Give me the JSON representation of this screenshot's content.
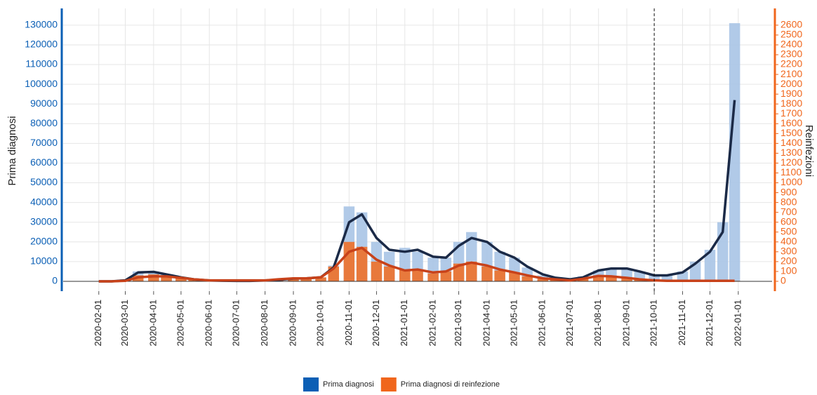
{
  "chart_data": {
    "type": "bar",
    "y_label": "Prima diagnosi",
    "y2_label": "Reinfezioni",
    "x": [
      "2020-02-01",
      "2020-02-15",
      "2020-03-01",
      "2020-03-15",
      "2020-04-01",
      "2020-04-15",
      "2020-05-01",
      "2020-05-15",
      "2020-06-01",
      "2020-06-15",
      "2020-07-01",
      "2020-07-15",
      "2020-08-01",
      "2020-08-15",
      "2020-09-01",
      "2020-09-15",
      "2020-10-01",
      "2020-10-15",
      "2020-11-01",
      "2020-11-15",
      "2020-12-01",
      "2020-12-15",
      "2021-01-01",
      "2021-01-15",
      "2021-02-01",
      "2021-02-15",
      "2021-03-01",
      "2021-03-15",
      "2021-04-01",
      "2021-04-15",
      "2021-05-01",
      "2021-05-15",
      "2021-06-01",
      "2021-06-15",
      "2021-07-01",
      "2021-07-15",
      "2021-08-01",
      "2021-08-15",
      "2021-09-01",
      "2021-09-15",
      "2021-10-01",
      "2021-10-15",
      "2021-11-01",
      "2021-11-15",
      "2021-12-01",
      "2021-12-15",
      "2021-12-28"
    ],
    "series": [
      {
        "name": "Prima diagnosi",
        "color": "#0b5fb5",
        "bar_color": "#a9c4e6",
        "trend_color": "#1b2a47",
        "axis": "y",
        "values": [
          0,
          0,
          1000,
          5000,
          5000,
          3500,
          2000,
          1000,
          400,
          300,
          200,
          200,
          400,
          800,
          1500,
          1500,
          2000,
          8000,
          38000,
          35000,
          20000,
          15000,
          17000,
          15000,
          12000,
          12000,
          20000,
          25000,
          20000,
          15000,
          12000,
          7000,
          3000,
          1500,
          1000,
          2500,
          5500,
          6500,
          6500,
          5000,
          3000,
          3000,
          5000,
          10000,
          16000,
          30000,
          131000
        ],
        "trend": [
          0,
          0,
          500,
          4500,
          4800,
          3500,
          2000,
          1000,
          400,
          300,
          200,
          200,
          400,
          700,
          1400,
          1500,
          2000,
          7000,
          30000,
          34000,
          22000,
          16000,
          15000,
          16000,
          12500,
          12000,
          18000,
          22000,
          20000,
          15000,
          12000,
          7500,
          3500,
          1800,
          1000,
          2000,
          5500,
          6500,
          6500,
          5000,
          3000,
          3000,
          4500,
          9000,
          15000,
          25000,
          92000
        ]
      },
      {
        "name": "Prima diagnosi di reinfezione",
        "color": "#f0661c",
        "bar_color": "#f26b1d",
        "trend_color": "#c8421a",
        "axis": "y2",
        "values": [
          0,
          0,
          10,
          60,
          70,
          60,
          40,
          20,
          10,
          10,
          10,
          10,
          10,
          20,
          30,
          30,
          40,
          150,
          400,
          350,
          200,
          150,
          120,
          120,
          80,
          100,
          180,
          200,
          150,
          110,
          90,
          50,
          25,
          15,
          10,
          30,
          60,
          50,
          30,
          20,
          10,
          5,
          5,
          5,
          5,
          5,
          5
        ],
        "trend": [
          0,
          0,
          5,
          40,
          50,
          50,
          35,
          20,
          10,
          10,
          10,
          10,
          10,
          20,
          30,
          30,
          40,
          130,
          300,
          340,
          220,
          160,
          110,
          120,
          90,
          100,
          160,
          190,
          160,
          120,
          90,
          60,
          30,
          20,
          10,
          25,
          55,
          50,
          35,
          20,
          10,
          5,
          5,
          5,
          5,
          5,
          5
        ]
      }
    ],
    "xlim": [
      "2019-12-24",
      "2022-02-07"
    ],
    "xticks": [
      "2020-02-01",
      "2020-03-01",
      "2020-04-01",
      "2020-05-01",
      "2020-06-01",
      "2020-07-01",
      "2020-08-01",
      "2020-09-01",
      "2020-10-01",
      "2020-11-01",
      "2020-12-01",
      "2021-01-01",
      "2021-02-01",
      "2021-03-01",
      "2021-04-01",
      "2021-05-01",
      "2021-06-01",
      "2021-07-01",
      "2021-08-01",
      "2021-09-01",
      "2021-10-01",
      "2021-11-01",
      "2021-12-01",
      "2022-01-01"
    ],
    "ylim": [
      -5000,
      138500
    ],
    "yticks": [
      0,
      10000,
      20000,
      30000,
      40000,
      50000,
      60000,
      70000,
      80000,
      90000,
      100000,
      110000,
      120000,
      130000
    ],
    "y2lim": [
      -100,
      2770
    ],
    "y2ticks": [
      0,
      100,
      200,
      300,
      400,
      500,
      600,
      700,
      800,
      900,
      1000,
      1100,
      1200,
      1300,
      1400,
      1500,
      1600,
      1700,
      1800,
      1900,
      2000,
      2100,
      2200,
      2300,
      2400,
      2500,
      2600
    ],
    "vline": "2021-10-01",
    "grid": true,
    "legend": "bottom"
  }
}
